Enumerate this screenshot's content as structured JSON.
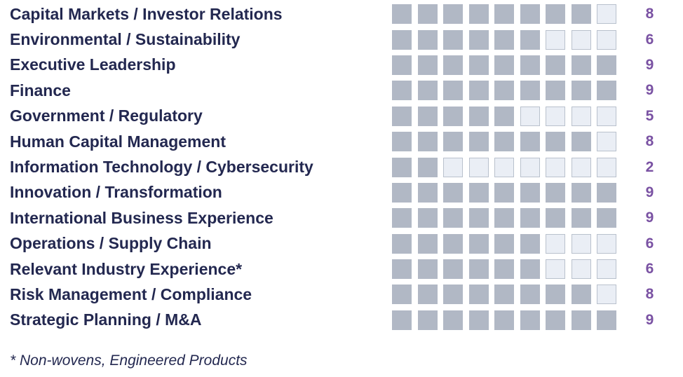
{
  "chart_data": {
    "type": "heatmap",
    "categories": [
      "Capital Markets / Investor Relations",
      "Environmental / Sustainability",
      "Executive Leadership",
      "Finance",
      "Government / Regulatory",
      "Human Capital Management",
      "Information Technology / Cybersecurity",
      "Innovation / Transformation",
      "International Business Experience",
      "Operations / Supply Chain",
      "Relevant Industry Experience*",
      "Risk Management / Compliance",
      "Strategic Planning / M&A"
    ],
    "values": [
      8,
      6,
      9,
      9,
      5,
      8,
      2,
      9,
      9,
      6,
      6,
      8,
      9
    ],
    "columns": 9,
    "fill_direction": "left-to-right",
    "footnote": "* Non-wovens, Engineered Products",
    "colors": {
      "label_text": "#232850",
      "count_text": "#7a52a3",
      "cell_filled": "#b1b8c5",
      "cell_empty_fill": "#eaeef5",
      "cell_empty_border": "#b9c1cd",
      "background": "#ffffff"
    }
  }
}
